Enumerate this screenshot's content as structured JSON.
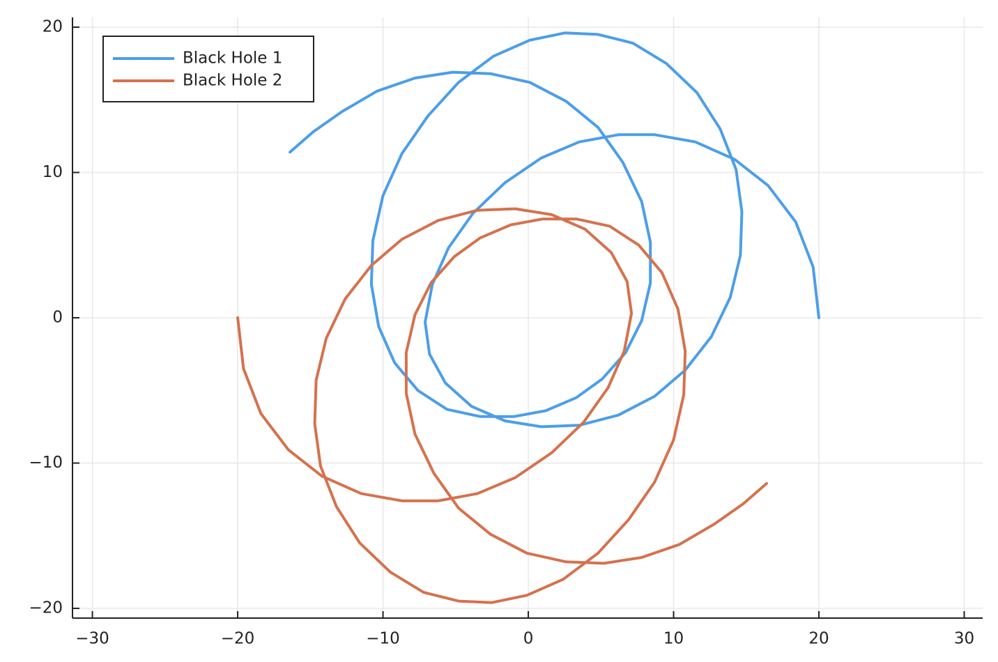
{
  "chart_data": {
    "type": "line",
    "legend": "top-left",
    "grid": true,
    "xlim": [
      -31.37,
      31.27
    ],
    "ylim": [
      -20.67,
      20.67
    ],
    "xticks": [
      {
        "value": -30,
        "label": "−30"
      },
      {
        "value": -20,
        "label": "−20"
      },
      {
        "value": -10,
        "label": "−10"
      },
      0,
      10,
      20,
      30
    ],
    "yticks": [
      {
        "value": -20,
        "label": "−20"
      },
      {
        "value": -10,
        "label": "−10"
      },
      0,
      10,
      20
    ],
    "series": [
      {
        "name": "Black Hole 1",
        "color": "#4c9ee9",
        "x": [
          20,
          19.6,
          18.4,
          16.5,
          14.2,
          11.5,
          8.7,
          6.2,
          3.5,
          0.9,
          -1.6,
          -3.8,
          -5.5,
          -6.6,
          -7.1,
          -6.8,
          -5.7,
          -3.9,
          -1.6,
          0.9,
          3.5,
          6.2,
          8.7,
          10.8,
          12.6,
          13.9,
          14.6,
          14.7,
          14.3,
          13.2,
          11.6,
          9.5,
          7.2,
          4.8,
          2.5,
          0.1,
          -2.4,
          -4.8,
          -6.9,
          -8.7,
          -10.0,
          -10.7,
          -10.8,
          -10.3,
          -9.2,
          -7.6,
          -5.6,
          -3.3,
          -1.0,
          1.2,
          3.3,
          5.1,
          6.7,
          7.8,
          8.4,
          8.4,
          7.8,
          6.5,
          4.8,
          2.6,
          0.1,
          -2.6,
          -5.2,
          -7.8,
          -10.4,
          -12.8,
          -14.8,
          -16.4
        ],
        "y": [
          0,
          3.5,
          6.6,
          9.1,
          10.9,
          12.1,
          12.6,
          12.6,
          12.1,
          11.0,
          9.3,
          7.2,
          4.8,
          2.3,
          -0.3,
          -2.5,
          -4.5,
          -6.1,
          -7.1,
          -7.5,
          -7.4,
          -6.7,
          -5.4,
          -3.6,
          -1.3,
          1.4,
          4.3,
          7.3,
          10.2,
          13.0,
          15.5,
          17.5,
          18.9,
          19.5,
          19.6,
          19.1,
          18.0,
          16.2,
          13.9,
          11.3,
          8.4,
          5.3,
          2.3,
          -0.6,
          -3.1,
          -5.0,
          -6.3,
          -6.8,
          -6.8,
          -6.4,
          -5.5,
          -4.2,
          -2.4,
          -0.2,
          2.4,
          5.2,
          8.0,
          10.7,
          13.1,
          14.9,
          16.2,
          16.8,
          16.9,
          16.5,
          15.6,
          14.2,
          12.8,
          11.4
        ]
      },
      {
        "name": "Black Hole 2",
        "color": "#d4724e",
        "x": [
          -20,
          -19.6,
          -18.4,
          -16.5,
          -14.2,
          -11.5,
          -8.7,
          -6.2,
          -3.5,
          -0.9,
          1.6,
          3.8,
          5.5,
          6.6,
          7.1,
          6.8,
          5.7,
          3.9,
          1.6,
          -0.9,
          -3.5,
          -6.2,
          -8.7,
          -10.8,
          -12.6,
          -13.9,
          -14.6,
          -14.7,
          -14.3,
          -13.2,
          -11.6,
          -9.5,
          -7.2,
          -4.8,
          -2.5,
          -0.1,
          2.4,
          4.8,
          6.9,
          8.7,
          10.0,
          10.7,
          10.8,
          10.3,
          9.2,
          7.6,
          5.6,
          3.3,
          1.0,
          -1.2,
          -3.3,
          -5.1,
          -6.7,
          -7.8,
          -8.4,
          -8.4,
          -7.8,
          -6.5,
          -4.8,
          -2.6,
          -0.1,
          2.6,
          5.2,
          7.8,
          10.4,
          12.8,
          14.8,
          16.4
        ],
        "y": [
          0,
          -3.5,
          -6.6,
          -9.1,
          -10.9,
          -12.1,
          -12.6,
          -12.6,
          -12.1,
          -11.0,
          -9.3,
          -7.2,
          -4.8,
          -2.3,
          0.3,
          2.5,
          4.5,
          6.1,
          7.1,
          7.5,
          7.4,
          6.7,
          5.4,
          3.6,
          1.3,
          -1.4,
          -4.3,
          -7.3,
          -10.2,
          -13.0,
          -15.5,
          -17.5,
          -18.9,
          -19.5,
          -19.6,
          -19.1,
          -18.0,
          -16.2,
          -13.9,
          -11.3,
          -8.4,
          -5.3,
          -2.3,
          0.6,
          3.1,
          5.0,
          6.3,
          6.8,
          6.8,
          6.4,
          5.5,
          4.2,
          2.4,
          0.2,
          -2.4,
          -5.2,
          -8.0,
          -10.7,
          -13.1,
          -14.9,
          -16.2,
          -16.8,
          -16.9,
          -16.5,
          -15.6,
          -14.2,
          -12.8,
          -11.4
        ]
      }
    ]
  }
}
